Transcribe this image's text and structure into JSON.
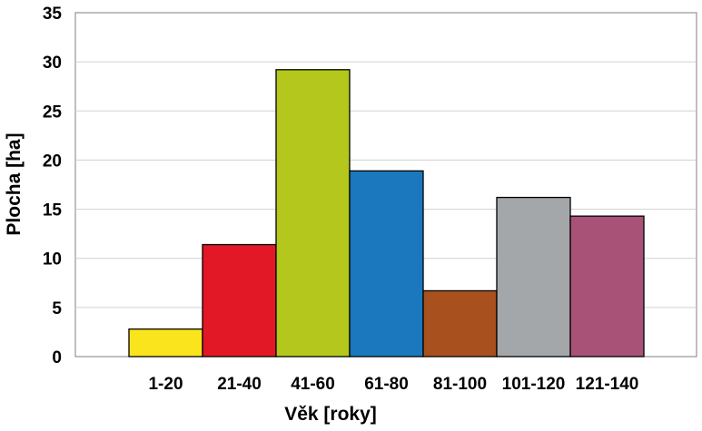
{
  "chart_data": {
    "type": "bar",
    "title": "",
    "xlabel": "Věk [roky]",
    "ylabel": "Plocha [ha]",
    "categories": [
      "1-20",
      "21-40",
      "41-60",
      "61-80",
      "81-100",
      "101-120",
      "121-140"
    ],
    "values": [
      2.8,
      11.4,
      29.2,
      18.9,
      6.7,
      16.2,
      14.3
    ],
    "colors": [
      "#FAE41E",
      "#E31826",
      "#B3C71D",
      "#1C78BE",
      "#A8511F",
      "#A3A7AA",
      "#A75276"
    ],
    "ylim": [
      0,
      35
    ],
    "yticks": [
      0,
      5,
      10,
      15,
      20,
      25,
      30,
      35
    ],
    "grid": true,
    "legend": "none",
    "bar_outline_color": "#000000",
    "grid_color": "#d0d0d0"
  }
}
